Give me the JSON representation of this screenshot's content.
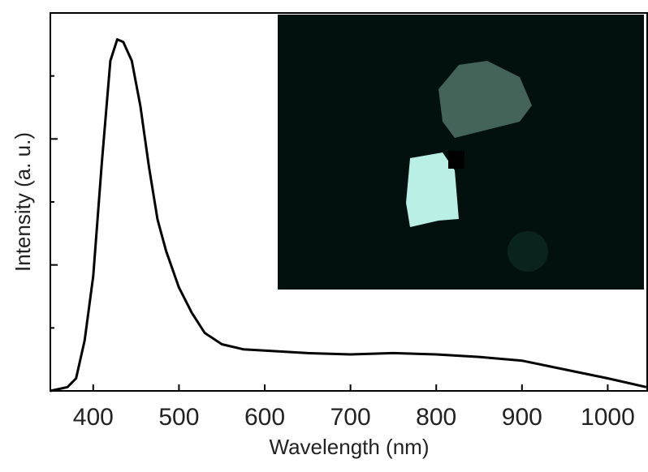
{
  "chart_data": {
    "type": "line",
    "x_label": "Wavelength (nm)",
    "y_label": "Intensity (a. u.)",
    "x": [
      350,
      370,
      380,
      390,
      400,
      410,
      420,
      428,
      435,
      445,
      455,
      465,
      475,
      485,
      500,
      515,
      530,
      550,
      575,
      600,
      650,
      700,
      750,
      800,
      850,
      900,
      950,
      1000,
      1045
    ],
    "values": [
      0,
      0.03,
      0.1,
      0.4,
      0.91,
      1.81,
      2.62,
      2.79,
      2.77,
      2.62,
      2.26,
      1.78,
      1.36,
      1.11,
      0.82,
      0.62,
      0.46,
      0.37,
      0.33,
      0.32,
      0.3,
      0.29,
      0.3,
      0.29,
      0.27,
      0.24,
      0.17,
      0.1,
      0.03
    ],
    "color": "#000000",
    "xlim": [
      350,
      1046
    ],
    "xticks": [
      400,
      500,
      600,
      700,
      800,
      900,
      1000
    ],
    "ylim": [
      0,
      3
    ],
    "yticks": [
      1,
      2
    ],
    "yminor_ticks": [
      0.5,
      1.5,
      2.5
    ]
  }
}
